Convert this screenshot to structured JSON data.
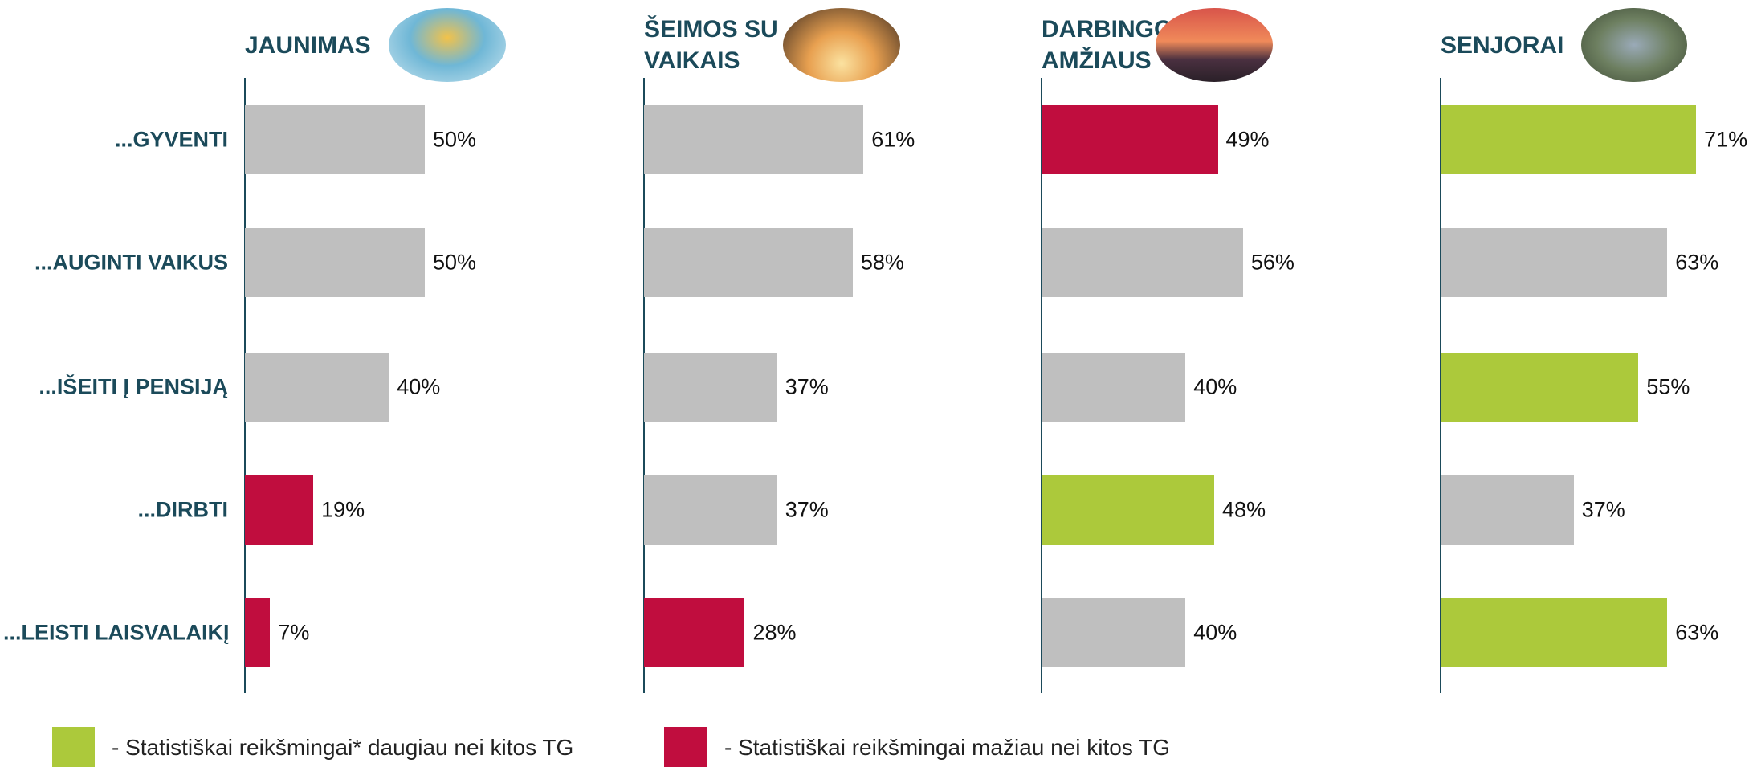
{
  "chart_data": {
    "type": "bar",
    "orientation": "horizontal",
    "categories": [
      "...GYVENTI",
      "...AUGINTI VAIKUS",
      "...IŠEITI Į PENSIJĄ",
      "...DIRBTI",
      "...LEISTI LAISVALAIKĮ"
    ],
    "xlim": [
      0,
      100
    ],
    "series": [
      {
        "name": "JAUNIMAS",
        "values": [
          50,
          50,
          40,
          19,
          7
        ],
        "value_labels": [
          "50%",
          "50%",
          "40%",
          "19%",
          "7%"
        ],
        "colors": [
          "#bfbfbf",
          "#bfbfbf",
          "#bfbfbf",
          "#c00d3e",
          "#c00d3e"
        ]
      },
      {
        "name": "ŠEIMOS SU VAIKAIS",
        "values": [
          61,
          58,
          37,
          37,
          28
        ],
        "value_labels": [
          "61%",
          "58%",
          "37%",
          "37%",
          "28%"
        ],
        "colors": [
          "#bfbfbf",
          "#bfbfbf",
          "#bfbfbf",
          "#bfbfbf",
          "#c00d3e"
        ]
      },
      {
        "name": "DARBINGO AMŽIAUS",
        "values": [
          49,
          56,
          40,
          48,
          40
        ],
        "value_labels": [
          "49%",
          "56%",
          "40%",
          "48%",
          "40%"
        ],
        "colors": [
          "#c00d3e",
          "#bfbfbf",
          "#bfbfbf",
          "#acc93b",
          "#bfbfbf"
        ]
      },
      {
        "name": "SENJORAI",
        "values": [
          71,
          63,
          55,
          37,
          63
        ],
        "value_labels": [
          "71%",
          "63%",
          "55%",
          "37%",
          "63%"
        ],
        "colors": [
          "#acc93b",
          "#bfbfbf",
          "#acc93b",
          "#bfbfbf",
          "#acc93b"
        ]
      }
    ],
    "legend": [
      {
        "color": "#acc93b",
        "label": "- Statistiškai reikšmingai* daugiau nei kitos TG"
      },
      {
        "color": "#c00d3e",
        "label": "- Statistiškai reikšmingai mažiau nei kitos TG"
      }
    ]
  }
}
